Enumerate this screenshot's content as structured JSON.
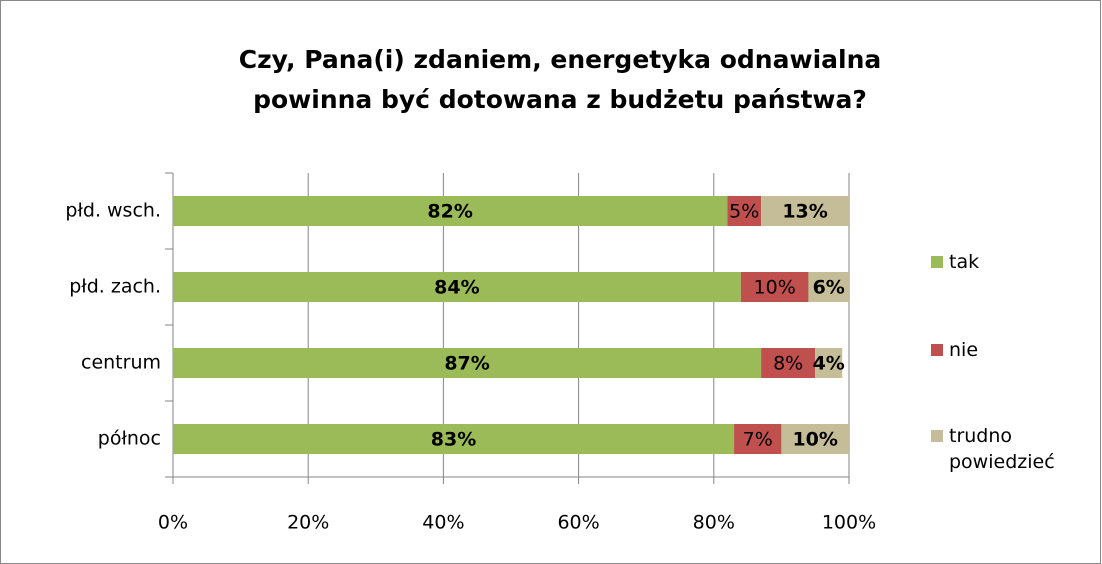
{
  "chart_data": {
    "type": "stacked-bar-horizontal",
    "title": "Czy, Pana(i) zdaniem, energetyka odnawialna powinna być dotowana z budżetu państwa?",
    "categories": [
      "płd. wsch.",
      "płd. zach.",
      "centrum",
      "północ"
    ],
    "series": [
      {
        "name": "tak",
        "color": "#9bbb59",
        "values": [
          82,
          84,
          87,
          83
        ],
        "value_labels": [
          "82%",
          "84%",
          "87%",
          "83%"
        ]
      },
      {
        "name": "nie",
        "color": "#c0504d",
        "values": [
          5,
          10,
          8,
          7
        ],
        "value_labels": [
          "5%",
          "10%",
          "8%",
          "7%"
        ]
      },
      {
        "name": "trudno powiedzieć",
        "color": "#c4bd97",
        "values": [
          13,
          6,
          4,
          10
        ],
        "value_labels": [
          "13%",
          "6%",
          "4%",
          "10%"
        ]
      }
    ],
    "xlim": [
      0,
      100
    ],
    "xticks": [
      {
        "value": 0,
        "label": "0%"
      },
      {
        "value": 20,
        "label": "20%"
      },
      {
        "value": 40,
        "label": "40%"
      },
      {
        "value": 60,
        "label": "60%"
      },
      {
        "value": 80,
        "label": "80%"
      },
      {
        "value": 100,
        "label": "100%"
      }
    ],
    "grid": true,
    "legend": "right"
  }
}
